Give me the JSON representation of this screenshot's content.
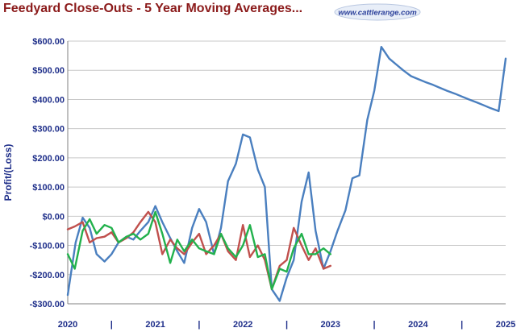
{
  "title": "Feedyard Close-Outs - 5 Year Moving Averages...",
  "logo_text": "www.cattlerange.com",
  "colors": {
    "title": "#8b1a1a",
    "axis_text": "#1f2f8a",
    "grid": "#c8c8c8",
    "series_blue": "#4a7fbf",
    "series_red": "#c0504d",
    "series_green": "#22b14c"
  },
  "chart_data": {
    "type": "line",
    "title": "",
    "xlabel": "",
    "ylabel": "Profit/(Loss)",
    "ylim": [
      -300,
      600
    ],
    "yticks": [
      600,
      500,
      400,
      300,
      200,
      100,
      0,
      -100,
      -200,
      -300
    ],
    "ytick_labels": [
      "$600.00",
      "$500.00",
      "$400.00",
      "$300.00",
      "$200.00",
      "$100.00",
      "$0.00",
      "-$100.00",
      "-$200.00",
      "-$300.00"
    ],
    "xlim": [
      2020.0,
      2025.0
    ],
    "x_labels": [
      "2020",
      "2021",
      "2022",
      "2023",
      "2024",
      "2025"
    ],
    "x_separator": "|",
    "grid": true,
    "series": [
      {
        "color": "#4a7fbf",
        "x": [
          2020.0,
          2020.04,
          2020.09,
          2020.17,
          2020.25,
          2020.33,
          2020.42,
          2020.5,
          2020.58,
          2020.67,
          2020.75,
          2020.83,
          2020.92,
          2021.0,
          2021.08,
          2021.17,
          2021.25,
          2021.33,
          2021.42,
          2021.5,
          2021.58,
          2021.67,
          2021.75,
          2021.83,
          2021.92,
          2022.0,
          2022.08,
          2022.17,
          2022.25,
          2022.33,
          2022.42,
          2022.5,
          2022.58,
          2022.67,
          2022.75,
          2022.83,
          2022.92,
          2023.0,
          2023.08,
          2023.17,
          2023.25,
          2023.33,
          2023.42,
          2023.5,
          2023.58,
          2023.67,
          2023.75,
          2023.83,
          2023.92,
          2024.0,
          2024.08,
          2024.17,
          2024.25,
          2024.33,
          2024.42,
          2024.5,
          2024.58,
          2024.67,
          2024.75,
          2024.83,
          2024.92,
          2025.0
        ],
        "y": [
          -270,
          -190,
          -90,
          -5,
          -40,
          -130,
          -155,
          -130,
          -90,
          -70,
          -80,
          -50,
          -20,
          35,
          -20,
          -75,
          -120,
          -160,
          -40,
          25,
          -20,
          -130,
          -40,
          120,
          180,
          280,
          270,
          160,
          100,
          -250,
          -290,
          -210,
          -150,
          50,
          150,
          -50,
          -180,
          -120,
          -50,
          20,
          130,
          140,
          330,
          430,
          580,
          540,
          520,
          500,
          480,
          470,
          460,
          450,
          440,
          430,
          420,
          410,
          400,
          390,
          380,
          370,
          360,
          540
        ]
      },
      {
        "color": "#c0504d",
        "x": [
          2020.0,
          2020.08,
          2020.17,
          2020.25,
          2020.33,
          2020.42,
          2020.5,
          2020.58,
          2020.67,
          2020.75,
          2020.83,
          2020.92,
          2021.0,
          2021.08,
          2021.17,
          2021.25,
          2021.33,
          2021.42,
          2021.5,
          2021.58,
          2021.67,
          2021.75,
          2021.83,
          2021.92,
          2022.0,
          2022.08,
          2022.17,
          2022.25,
          2022.33,
          2022.42,
          2022.5,
          2022.58,
          2022.67,
          2022.75,
          2022.83,
          2022.92,
          2023.0
        ],
        "y": [
          -45,
          -35,
          -20,
          -90,
          -75,
          -70,
          -55,
          -90,
          -75,
          -55,
          -20,
          15,
          -20,
          -130,
          -80,
          -110,
          -130,
          -90,
          -60,
          -130,
          -100,
          -60,
          -120,
          -150,
          -30,
          -140,
          -100,
          -150,
          -250,
          -170,
          -150,
          -40,
          -100,
          -150,
          -110,
          -180,
          -170
        ]
      },
      {
        "color": "#22b14c",
        "x": [
          2020.0,
          2020.08,
          2020.17,
          2020.25,
          2020.33,
          2020.42,
          2020.5,
          2020.58,
          2020.67,
          2020.75,
          2020.83,
          2020.92,
          2021.0,
          2021.08,
          2021.17,
          2021.25,
          2021.33,
          2021.42,
          2021.5,
          2021.58,
          2021.67,
          2021.75,
          2021.83,
          2021.92,
          2022.0,
          2022.08,
          2022.17,
          2022.25,
          2022.33,
          2022.42,
          2022.5,
          2022.58,
          2022.67,
          2022.75,
          2022.83,
          2022.92,
          2023.0
        ],
        "y": [
          -130,
          -180,
          -50,
          -10,
          -60,
          -30,
          -40,
          -90,
          -70,
          -60,
          -80,
          -60,
          15,
          -60,
          -160,
          -80,
          -120,
          -80,
          -110,
          -120,
          -130,
          -60,
          -110,
          -140,
          -100,
          -30,
          -140,
          -130,
          -250,
          -180,
          -190,
          -110,
          -60,
          -130,
          -130,
          -110,
          -130
        ]
      }
    ]
  }
}
